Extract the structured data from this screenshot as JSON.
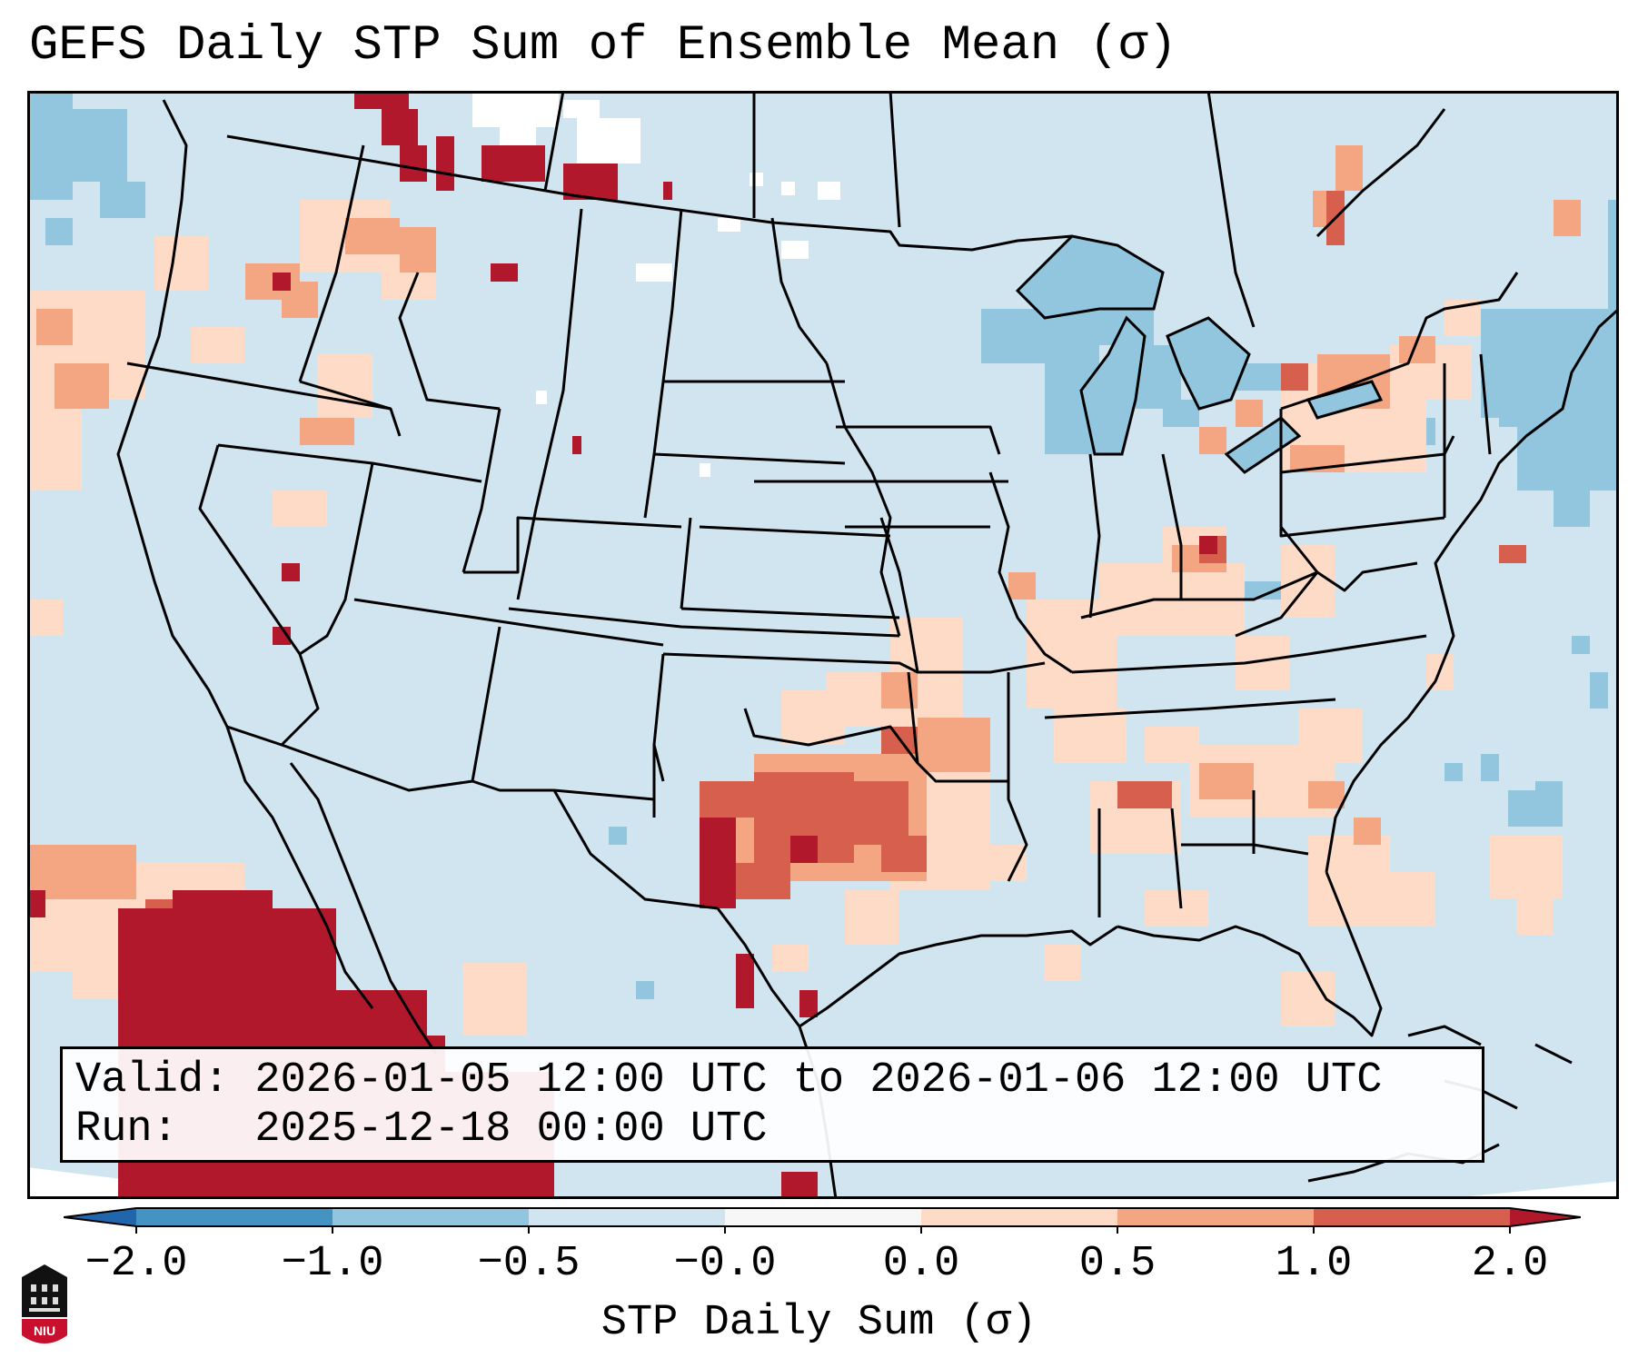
{
  "title": "GEFS Daily STP Sum of Ensemble Mean (σ)",
  "info": {
    "valid": "Valid: 2026-01-05 12:00 UTC to 2026-01-06 12:00 UTC",
    "run": "Run:   2025-12-18 00:00 UTC"
  },
  "colorbar": {
    "label": "STP Daily Sum (σ)",
    "ticks": [
      "−2.0",
      "−1.0",
      "−0.5",
      "−0.0",
      "0.0",
      "0.5",
      "1.0",
      "2.0"
    ],
    "colors": [
      "#2166ac",
      "#4393c3",
      "#92c5de",
      "#d1e5f0",
      "#f7f7f7",
      "#fddbc7",
      "#f4a582",
      "#d6604d",
      "#b2182b"
    ]
  },
  "logo": {
    "text": "NIU"
  },
  "anomaly_regions": [
    {
      "region": "Texas / Red River",
      "level": "1.0 to 2.0"
    },
    {
      "region": "Pacific off Baja California",
      "level": "> 2.0"
    },
    {
      "region": "Ohio Valley / Southeast",
      "level": "0.0 to 0.5"
    },
    {
      "region": "Great Lakes",
      "level": "-1.0 to -0.5"
    },
    {
      "region": "Gulf of Maine / Atlantic",
      "level": "-1.0 to -0.5"
    }
  ]
}
